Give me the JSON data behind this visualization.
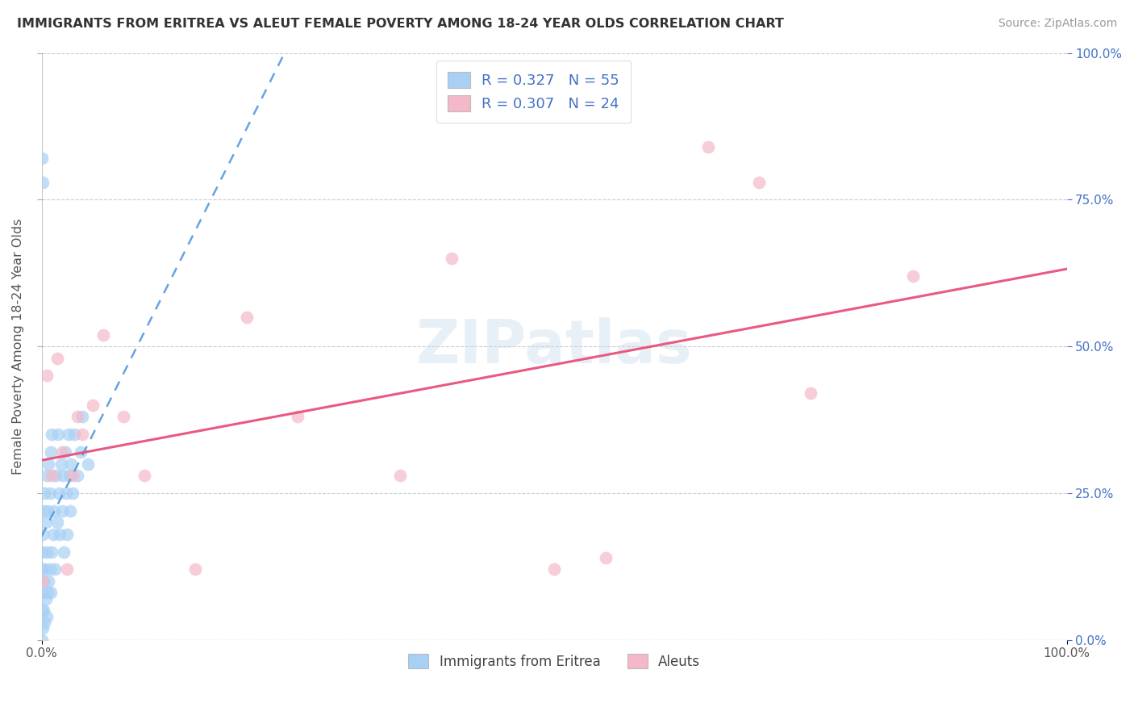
{
  "title": "IMMIGRANTS FROM ERITREA VS ALEUT FEMALE POVERTY AMONG 18-24 YEAR OLDS CORRELATION CHART",
  "source": "Source: ZipAtlas.com",
  "ylabel": "Female Poverty Among 18-24 Year Olds",
  "watermark": "ZIPatlas",
  "legend_label1": "Immigrants from Eritrea",
  "legend_label2": "Aleuts",
  "r1": 0.327,
  "n1": 55,
  "r2": 0.307,
  "n2": 24,
  "color1": "#a8d0f5",
  "color2": "#f5b8c8",
  "trendline1_color": "#5599dd",
  "trendline2_color": "#e8507a",
  "background_color": "#ffffff",
  "grid_color": "#cccccc",
  "right_tick_color": "#4472c4",
  "title_color": "#333333",
  "source_color": "#999999",
  "scatter1_x": [
    0.0,
    0.0,
    0.0,
    0.0,
    0.0,
    0.001,
    0.001,
    0.002,
    0.002,
    0.002,
    0.003,
    0.003,
    0.003,
    0.004,
    0.004,
    0.005,
    0.005,
    0.005,
    0.006,
    0.006,
    0.007,
    0.007,
    0.008,
    0.008,
    0.009,
    0.009,
    0.01,
    0.01,
    0.011,
    0.012,
    0.013,
    0.014,
    0.015,
    0.016,
    0.017,
    0.018,
    0.019,
    0.02,
    0.021,
    0.022,
    0.023,
    0.024,
    0.025,
    0.026,
    0.027,
    0.028,
    0.029,
    0.03,
    0.032,
    0.035,
    0.038,
    0.04,
    0.045,
    0.0,
    0.001
  ],
  "scatter1_y": [
    0.0,
    0.05,
    0.08,
    0.12,
    0.15,
    0.02,
    0.18,
    0.05,
    0.1,
    0.22,
    0.03,
    0.12,
    0.25,
    0.07,
    0.2,
    0.04,
    0.15,
    0.28,
    0.08,
    0.22,
    0.1,
    0.3,
    0.12,
    0.25,
    0.08,
    0.32,
    0.15,
    0.35,
    0.18,
    0.22,
    0.12,
    0.28,
    0.2,
    0.35,
    0.25,
    0.18,
    0.3,
    0.22,
    0.28,
    0.15,
    0.32,
    0.25,
    0.18,
    0.35,
    0.28,
    0.22,
    0.3,
    0.25,
    0.35,
    0.28,
    0.32,
    0.38,
    0.3,
    0.82,
    0.78
  ],
  "scatter2_x": [
    0.0,
    0.005,
    0.01,
    0.015,
    0.02,
    0.025,
    0.03,
    0.035,
    0.04,
    0.05,
    0.06,
    0.08,
    0.1,
    0.15,
    0.2,
    0.25,
    0.35,
    0.4,
    0.5,
    0.55,
    0.65,
    0.7,
    0.75,
    0.85
  ],
  "scatter2_y": [
    0.1,
    0.45,
    0.28,
    0.48,
    0.32,
    0.12,
    0.28,
    0.38,
    0.35,
    0.4,
    0.52,
    0.38,
    0.28,
    0.12,
    0.55,
    0.38,
    0.28,
    0.65,
    0.12,
    0.14,
    0.84,
    0.78,
    0.42,
    0.62
  ],
  "trendline1_intercept": 0.18,
  "trendline1_slope": 3.5,
  "trendline2_intercept": 0.28,
  "trendline2_slope": 0.38,
  "xlim": [
    0.0,
    1.0
  ],
  "ylim": [
    0.0,
    1.0
  ],
  "yticks": [
    0.0,
    0.25,
    0.5,
    0.75,
    1.0
  ],
  "ytick_labels": [
    "0.0%",
    "25.0%",
    "50.0%",
    "75.0%",
    "100.0%"
  ],
  "xtick_left": "0.0%",
  "xtick_right": "100.0%"
}
